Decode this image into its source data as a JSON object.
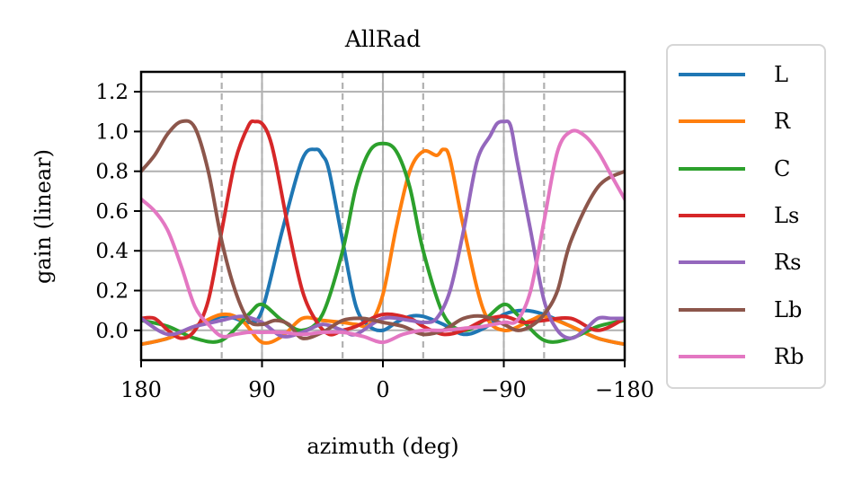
{
  "chart_data": {
    "type": "line",
    "title": "AllRad",
    "xlabel": "azimuth (deg)",
    "ylabel": "gain (linear)",
    "xlim": [
      180,
      -180
    ],
    "ylim": [
      -0.15,
      1.3
    ],
    "xticks": [
      180,
      90,
      0,
      -90,
      -180
    ],
    "xtick_labels": [
      "180",
      "90",
      "0",
      "−90",
      "−180"
    ],
    "yticks": [
      0.0,
      0.2,
      0.4,
      0.6,
      0.8,
      1.0,
      1.2
    ],
    "ytick_labels": [
      "0.0",
      "0.2",
      "0.4",
      "0.6",
      "0.8",
      "1.0",
      "1.2"
    ],
    "grid": true,
    "speaker_azimuths": [
      120,
      90,
      30,
      0,
      -30,
      -90,
      -120
    ],
    "legend_position": "outside-right",
    "series": [
      {
        "name": "L",
        "color": "#1f77b4",
        "x": [
          180,
          160,
          140,
          120,
          110,
          100,
          90,
          75,
          60,
          50,
          45,
          40,
          30,
          20,
          10,
          0,
          -10,
          -20,
          -30,
          -45,
          -60,
          -75,
          -90,
          -105,
          -120,
          -140,
          -160,
          -180
        ],
        "y": [
          -0.07,
          -0.04,
          0.02,
          0.07,
          0.06,
          0.04,
          0.1,
          0.5,
          0.86,
          0.91,
          0.88,
          0.8,
          0.45,
          0.12,
          0.02,
          0.0,
          0.04,
          0.07,
          0.07,
          0.03,
          -0.02,
          0.01,
          0.08,
          0.1,
          0.08,
          0.02,
          -0.04,
          -0.07
        ]
      },
      {
        "name": "R",
        "color": "#ff7f0e",
        "x": [
          180,
          160,
          140,
          120,
          105,
          90,
          75,
          60,
          45,
          30,
          20,
          10,
          0,
          -10,
          -20,
          -30,
          -40,
          -45,
          -50,
          -60,
          -75,
          -90,
          -110,
          -120,
          -140,
          -160,
          -180
        ],
        "y": [
          -0.07,
          -0.04,
          0.02,
          0.08,
          0.05,
          -0.06,
          -0.03,
          0.06,
          0.05,
          0.04,
          0.03,
          0.03,
          0.18,
          0.52,
          0.8,
          0.9,
          0.88,
          0.91,
          0.86,
          0.52,
          0.1,
          0.0,
          0.05,
          0.07,
          0.02,
          -0.04,
          -0.07
        ]
      },
      {
        "name": "C",
        "color": "#2ca02c",
        "x": [
          180,
          160,
          140,
          120,
          100,
          90,
          75,
          60,
          45,
          30,
          20,
          10,
          0,
          -10,
          -20,
          -30,
          -45,
          -60,
          -75,
          -90,
          -100,
          -120,
          -140,
          -160,
          -180
        ],
        "y": [
          0.05,
          0.02,
          -0.04,
          -0.05,
          0.08,
          0.13,
          0.05,
          0.0,
          0.08,
          0.4,
          0.72,
          0.9,
          0.94,
          0.9,
          0.72,
          0.4,
          0.08,
          0.0,
          0.05,
          0.13,
          0.08,
          -0.05,
          -0.04,
          0.02,
          0.05
        ]
      },
      {
        "name": "Ls",
        "color": "#d62728",
        "x": [
          180,
          170,
          160,
          150,
          140,
          130,
          120,
          110,
          100,
          95,
          90,
          85,
          80,
          70,
          60,
          50,
          40,
          30,
          20,
          0,
          -20,
          -30,
          -45,
          -60,
          -75,
          -90,
          -105,
          -120,
          -140,
          -160,
          -180
        ],
        "y": [
          0.06,
          0.06,
          0.0,
          -0.04,
          0.0,
          0.15,
          0.5,
          0.85,
          1.03,
          1.05,
          1.04,
          0.98,
          0.85,
          0.5,
          0.2,
          0.05,
          -0.02,
          0.0,
          0.02,
          0.08,
          0.06,
          0.02,
          -0.02,
          0.0,
          0.05,
          0.07,
          0.04,
          0.05,
          0.06,
          0.0,
          0.06
        ]
      },
      {
        "name": "Rs",
        "color": "#9467bd",
        "x": [
          180,
          160,
          140,
          120,
          105,
          90,
          75,
          60,
          45,
          30,
          20,
          0,
          -20,
          -30,
          -40,
          -50,
          -60,
          -70,
          -80,
          -85,
          -90,
          -95,
          -100,
          -110,
          -120,
          -130,
          -140,
          -150,
          -160,
          -170,
          -180
        ],
        "y": [
          0.06,
          -0.02,
          0.02,
          0.05,
          0.07,
          0.04,
          -0.03,
          -0.01,
          0.03,
          0.0,
          -0.02,
          0.06,
          0.05,
          0.04,
          0.06,
          0.2,
          0.5,
          0.85,
          0.98,
          1.04,
          1.05,
          1.03,
          0.85,
          0.5,
          0.15,
          0.0,
          -0.04,
          0.0,
          0.06,
          0.06,
          0.06
        ]
      },
      {
        "name": "Lb",
        "color": "#8c564b",
        "x": [
          180,
          170,
          160,
          150,
          140,
          130,
          120,
          110,
          100,
          90,
          80,
          70,
          60,
          45,
          30,
          15,
          0,
          -15,
          -30,
          -45,
          -60,
          -75,
          -90,
          -100,
          -110,
          -120,
          -130,
          -140,
          -160,
          -180
        ],
        "y": [
          0.8,
          0.88,
          0.99,
          1.05,
          1.02,
          0.8,
          0.45,
          0.2,
          0.05,
          0.03,
          0.05,
          0.03,
          -0.04,
          -0.01,
          0.05,
          0.06,
          0.04,
          0.02,
          -0.02,
          0.0,
          0.06,
          0.07,
          0.03,
          0.0,
          0.02,
          0.08,
          0.2,
          0.45,
          0.72,
          0.8
        ]
      },
      {
        "name": "Rb",
        "color": "#e377c2",
        "x": [
          180,
          170,
          160,
          150,
          140,
          130,
          120,
          110,
          100,
          90,
          75,
          60,
          45,
          30,
          15,
          0,
          -15,
          -30,
          -45,
          -60,
          -75,
          -90,
          -100,
          -110,
          -120,
          -130,
          -140,
          -150,
          -160,
          -170,
          -180
        ],
        "y": [
          0.66,
          0.6,
          0.5,
          0.32,
          0.12,
          0.03,
          -0.03,
          -0.02,
          -0.01,
          -0.01,
          -0.01,
          -0.02,
          -0.01,
          -0.01,
          -0.03,
          -0.06,
          -0.02,
          0.0,
          0.0,
          0.01,
          0.02,
          0.04,
          0.05,
          0.2,
          0.55,
          0.9,
          1.0,
          0.98,
          0.9,
          0.78,
          0.66
        ]
      }
    ]
  }
}
